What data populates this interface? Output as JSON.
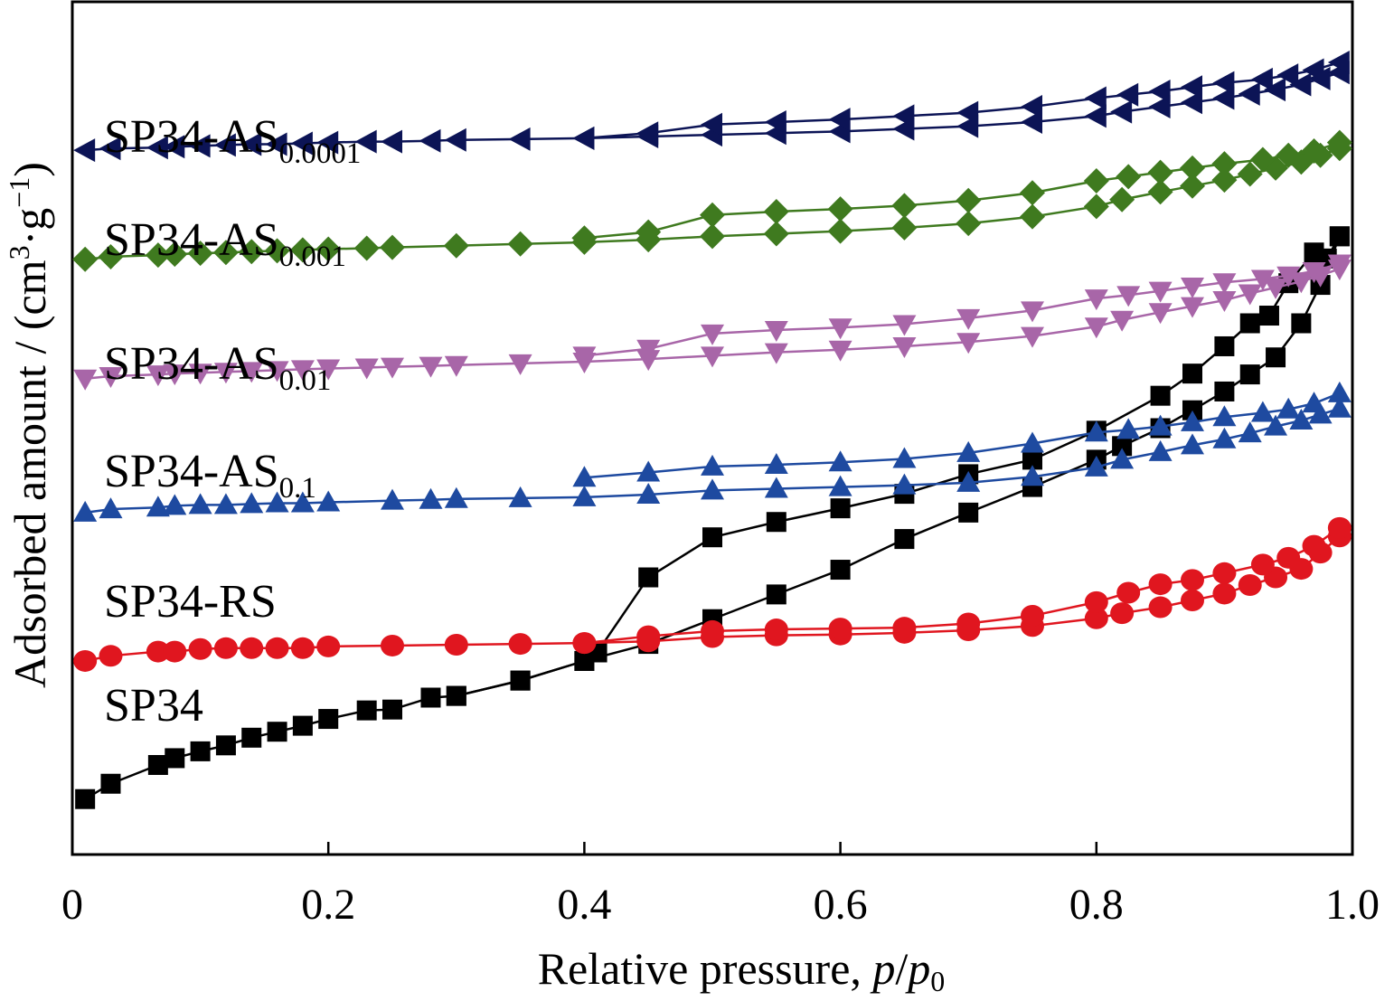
{
  "chart_data": {
    "type": "line",
    "title": "",
    "xlabel": {
      "text": "Relative pressure, ",
      "italic_p": "p",
      "slash": "/",
      "italic_p0": "p",
      "sub_0": "0"
    },
    "ylabel": {
      "text": "Adsorbed amount / (cm",
      "sup_3": "3",
      "mid": "·g",
      "sup_m1": "−1",
      "close": ")"
    },
    "xlim": [
      0,
      1.0
    ],
    "x_ticks": [
      "0",
      "0.2",
      "0.4",
      "0.6",
      "0.8",
      "1.0"
    ],
    "x_tick_values": [
      0,
      0.2,
      0.4,
      0.6,
      0.8,
      1.0
    ],
    "y_ticks_shown": false,
    "ylim": [
      0,
      100
    ],
    "grid": false,
    "legend": "inline labels at left",
    "series": [
      {
        "name": "SP34",
        "label_main": "SP34",
        "label_sub": "",
        "color": "#000000",
        "marker": "square",
        "adsorption": [
          [
            0.01,
            6.5
          ],
          [
            0.03,
            8.3
          ],
          [
            0.067,
            10.5
          ],
          [
            0.08,
            11.3
          ],
          [
            0.1,
            12.1
          ],
          [
            0.12,
            12.8
          ],
          [
            0.14,
            13.7
          ],
          [
            0.16,
            14.4
          ],
          [
            0.18,
            15.1
          ],
          [
            0.2,
            15.9
          ],
          [
            0.23,
            16.9
          ],
          [
            0.25,
            17
          ],
          [
            0.28,
            18.4
          ],
          [
            0.3,
            18.6
          ],
          [
            0.35,
            20.4
          ],
          [
            0.4,
            22.7
          ],
          [
            0.45,
            24.7
          ],
          [
            0.5,
            27.6
          ],
          [
            0.55,
            30.5
          ],
          [
            0.6,
            33.4
          ],
          [
            0.65,
            37
          ],
          [
            0.7,
            40.1
          ],
          [
            0.75,
            43.1
          ],
          [
            0.8,
            46.3
          ],
          [
            0.82,
            47.9
          ],
          [
            0.85,
            50
          ],
          [
            0.875,
            52.1
          ],
          [
            0.9,
            54.3
          ],
          [
            0.92,
            56.3
          ],
          [
            0.94,
            58.3
          ],
          [
            0.96,
            62.3
          ],
          [
            0.975,
            66.8
          ],
          [
            0.99,
            72.5
          ]
        ],
        "desorption": [
          [
            0.99,
            72.5
          ],
          [
            0.98,
            69.9
          ],
          [
            0.97,
            70.6
          ],
          [
            0.95,
            67
          ],
          [
            0.935,
            63.2
          ],
          [
            0.92,
            62.3
          ],
          [
            0.9,
            59.6
          ],
          [
            0.875,
            56.4
          ],
          [
            0.85,
            53.8
          ],
          [
            0.8,
            49.7
          ],
          [
            0.75,
            46.3
          ],
          [
            0.7,
            44.6
          ],
          [
            0.65,
            42.3
          ],
          [
            0.6,
            40.6
          ],
          [
            0.55,
            39
          ],
          [
            0.5,
            37.2
          ],
          [
            0.45,
            32.5
          ],
          [
            0.41,
            23.7
          ],
          [
            0.4,
            22.7
          ],
          [
            0.35,
            20.4
          ],
          [
            0.3,
            18.6
          ]
        ]
      },
      {
        "name": "SP34-RS",
        "label_main": "SP34-RS",
        "label_sub": "",
        "color": "#e0161f",
        "marker": "circle",
        "adsorption": [
          [
            0.01,
            22.7
          ],
          [
            0.03,
            23.3
          ],
          [
            0.067,
            23.8
          ],
          [
            0.08,
            23.8
          ],
          [
            0.1,
            24.1
          ],
          [
            0.12,
            24.2
          ],
          [
            0.14,
            24.2
          ],
          [
            0.16,
            24.2
          ],
          [
            0.18,
            24.2
          ],
          [
            0.2,
            24.4
          ],
          [
            0.25,
            24.5
          ],
          [
            0.3,
            24.6
          ],
          [
            0.35,
            24.7
          ],
          [
            0.4,
            24.8
          ],
          [
            0.45,
            25
          ],
          [
            0.5,
            25.5
          ],
          [
            0.55,
            25.7
          ],
          [
            0.6,
            25.8
          ],
          [
            0.65,
            26
          ],
          [
            0.7,
            26.3
          ],
          [
            0.75,
            26.8
          ],
          [
            0.8,
            27.7
          ],
          [
            0.82,
            28.3
          ],
          [
            0.85,
            29
          ],
          [
            0.875,
            29.8
          ],
          [
            0.9,
            30.6
          ],
          [
            0.92,
            31.6
          ],
          [
            0.94,
            32.5
          ],
          [
            0.96,
            33.5
          ],
          [
            0.975,
            35.4
          ],
          [
            0.99,
            37.3
          ]
        ],
        "desorption": [
          [
            0.99,
            38.3
          ],
          [
            0.97,
            36.2
          ],
          [
            0.95,
            34.8
          ],
          [
            0.93,
            34
          ],
          [
            0.9,
            33
          ],
          [
            0.875,
            32.2
          ],
          [
            0.85,
            31.7
          ],
          [
            0.825,
            30.7
          ],
          [
            0.8,
            29.6
          ],
          [
            0.75,
            28
          ],
          [
            0.7,
            27.1
          ],
          [
            0.65,
            26.6
          ],
          [
            0.6,
            26.5
          ],
          [
            0.55,
            26.4
          ],
          [
            0.5,
            26.2
          ],
          [
            0.45,
            25.6
          ],
          [
            0.4,
            24.8
          ]
        ]
      },
      {
        "name": "SP34-AS0.1",
        "label_main": "SP34-AS",
        "label_sub": "0.1",
        "color": "#1e4aa0",
        "marker": "triangle-up",
        "adsorption": [
          [
            0.01,
            40.1
          ],
          [
            0.03,
            40.5
          ],
          [
            0.067,
            40.7
          ],
          [
            0.08,
            40.9
          ],
          [
            0.1,
            41
          ],
          [
            0.12,
            41
          ],
          [
            0.14,
            41.1
          ],
          [
            0.16,
            41.2
          ],
          [
            0.18,
            41.2
          ],
          [
            0.2,
            41.3
          ],
          [
            0.25,
            41.5
          ],
          [
            0.28,
            41.6
          ],
          [
            0.3,
            41.7
          ],
          [
            0.35,
            41.8
          ],
          [
            0.4,
            41.9
          ],
          [
            0.45,
            42.2
          ],
          [
            0.5,
            42.7
          ],
          [
            0.55,
            42.9
          ],
          [
            0.6,
            43.1
          ],
          [
            0.65,
            43.3
          ],
          [
            0.7,
            43.6
          ],
          [
            0.75,
            44.3
          ],
          [
            0.8,
            45.4
          ],
          [
            0.82,
            46.3
          ],
          [
            0.85,
            47.2
          ],
          [
            0.875,
            48
          ],
          [
            0.9,
            48.7
          ],
          [
            0.92,
            49.4
          ],
          [
            0.94,
            50.2
          ],
          [
            0.96,
            50.9
          ],
          [
            0.975,
            51.6
          ],
          [
            0.99,
            52.3
          ]
        ],
        "desorption": [
          [
            0.99,
            54.1
          ],
          [
            0.97,
            52.9
          ],
          [
            0.95,
            52.2
          ],
          [
            0.93,
            51.8
          ],
          [
            0.9,
            51.3
          ],
          [
            0.875,
            50.7
          ],
          [
            0.85,
            50.2
          ],
          [
            0.825,
            49.8
          ],
          [
            0.8,
            49.5
          ],
          [
            0.75,
            48.2
          ],
          [
            0.7,
            47.1
          ],
          [
            0.65,
            46.4
          ],
          [
            0.6,
            46
          ],
          [
            0.55,
            45.7
          ],
          [
            0.5,
            45.5
          ],
          [
            0.45,
            44.8
          ],
          [
            0.4,
            44.2
          ]
        ]
      },
      {
        "name": "SP34-AS0.01",
        "label_main": "SP34-AS",
        "label_sub": "0.01",
        "color": "#a866a8",
        "marker": "triangle-down",
        "adsorption": [
          [
            0.01,
            55.8
          ],
          [
            0.03,
            56.1
          ],
          [
            0.067,
            56.3
          ],
          [
            0.08,
            56.4
          ],
          [
            0.1,
            56.5
          ],
          [
            0.12,
            56.6
          ],
          [
            0.14,
            56.7
          ],
          [
            0.16,
            56.8
          ],
          [
            0.18,
            56.9
          ],
          [
            0.2,
            57
          ],
          [
            0.23,
            57.1
          ],
          [
            0.25,
            57.2
          ],
          [
            0.28,
            57.3
          ],
          [
            0.3,
            57.4
          ],
          [
            0.35,
            57.6
          ],
          [
            0.4,
            57.8
          ],
          [
            0.45,
            58.1
          ],
          [
            0.5,
            58.5
          ],
          [
            0.55,
            58.9
          ],
          [
            0.6,
            59.2
          ],
          [
            0.65,
            59.6
          ],
          [
            0.7,
            60.1
          ],
          [
            0.75,
            60.8
          ],
          [
            0.8,
            61.9
          ],
          [
            0.82,
            62.7
          ],
          [
            0.85,
            63.6
          ],
          [
            0.875,
            64.3
          ],
          [
            0.9,
            65
          ],
          [
            0.92,
            65.8
          ],
          [
            0.94,
            66.5
          ],
          [
            0.96,
            67.2
          ],
          [
            0.975,
            67.9
          ],
          [
            0.99,
            68.7
          ]
        ],
        "desorption": [
          [
            0.99,
            69.3
          ],
          [
            0.97,
            68.4
          ],
          [
            0.95,
            67.9
          ],
          [
            0.93,
            67.5
          ],
          [
            0.9,
            67.1
          ],
          [
            0.875,
            66.6
          ],
          [
            0.85,
            66.1
          ],
          [
            0.825,
            65.6
          ],
          [
            0.8,
            65.2
          ],
          [
            0.75,
            63.8
          ],
          [
            0.7,
            62.9
          ],
          [
            0.65,
            62.2
          ],
          [
            0.6,
            61.8
          ],
          [
            0.55,
            61.5
          ],
          [
            0.5,
            61.1
          ],
          [
            0.45,
            59.3
          ],
          [
            0.4,
            58.5
          ]
        ]
      },
      {
        "name": "SP34-AS0.001",
        "label_main": "SP34-AS",
        "label_sub": "0.001",
        "color": "#3f7a1f",
        "marker": "diamond",
        "adsorption": [
          [
            0.01,
            69.8
          ],
          [
            0.03,
            70.1
          ],
          [
            0.067,
            70.3
          ],
          [
            0.08,
            70.4
          ],
          [
            0.1,
            70.5
          ],
          [
            0.12,
            70.6
          ],
          [
            0.14,
            70.7
          ],
          [
            0.16,
            70.8
          ],
          [
            0.18,
            70.9
          ],
          [
            0.2,
            71
          ],
          [
            0.23,
            71.1
          ],
          [
            0.25,
            71.2
          ],
          [
            0.3,
            71.4
          ],
          [
            0.35,
            71.6
          ],
          [
            0.4,
            71.8
          ],
          [
            0.45,
            72.1
          ],
          [
            0.5,
            72.5
          ],
          [
            0.55,
            72.8
          ],
          [
            0.6,
            73.1
          ],
          [
            0.65,
            73.5
          ],
          [
            0.7,
            74
          ],
          [
            0.75,
            74.8
          ],
          [
            0.8,
            76
          ],
          [
            0.82,
            76.8
          ],
          [
            0.85,
            77.7
          ],
          [
            0.875,
            78.4
          ],
          [
            0.9,
            79.1
          ],
          [
            0.92,
            79.8
          ],
          [
            0.94,
            80.5
          ],
          [
            0.96,
            81.2
          ],
          [
            0.975,
            82
          ],
          [
            0.99,
            82.8
          ]
        ],
        "desorption": [
          [
            0.99,
            83.5
          ],
          [
            0.97,
            82.5
          ],
          [
            0.95,
            82
          ],
          [
            0.93,
            81.5
          ],
          [
            0.9,
            81
          ],
          [
            0.875,
            80.5
          ],
          [
            0.85,
            80
          ],
          [
            0.825,
            79.5
          ],
          [
            0.8,
            79
          ],
          [
            0.75,
            77.6
          ],
          [
            0.7,
            76.7
          ],
          [
            0.65,
            76.1
          ],
          [
            0.6,
            75.7
          ],
          [
            0.55,
            75.4
          ],
          [
            0.5,
            75
          ],
          [
            0.45,
            73
          ],
          [
            0.4,
            72.3
          ]
        ]
      },
      {
        "name": "SP34-AS0.0001",
        "label_main": "SP34-AS",
        "label_sub": "0.0001",
        "color": "#0c1456",
        "marker": "triangle-left",
        "adsorption": [
          [
            0.01,
            82.6
          ],
          [
            0.03,
            82.8
          ],
          [
            0.067,
            82.9
          ],
          [
            0.08,
            83
          ],
          [
            0.1,
            83.1
          ],
          [
            0.12,
            83.2
          ],
          [
            0.14,
            83.3
          ],
          [
            0.16,
            83.3
          ],
          [
            0.18,
            83.4
          ],
          [
            0.2,
            83.5
          ],
          [
            0.23,
            83.6
          ],
          [
            0.25,
            83.6
          ],
          [
            0.28,
            83.7
          ],
          [
            0.3,
            83.8
          ],
          [
            0.35,
            83.9
          ],
          [
            0.4,
            84
          ],
          [
            0.45,
            84.2
          ],
          [
            0.5,
            84.4
          ],
          [
            0.55,
            84.6
          ],
          [
            0.6,
            84.8
          ],
          [
            0.65,
            85.1
          ],
          [
            0.7,
            85.4
          ],
          [
            0.75,
            85.9
          ],
          [
            0.8,
            86.6
          ],
          [
            0.82,
            87.1
          ],
          [
            0.85,
            87.7
          ],
          [
            0.875,
            88.2
          ],
          [
            0.9,
            88.7
          ],
          [
            0.92,
            89.2
          ],
          [
            0.94,
            89.7
          ],
          [
            0.96,
            90.3
          ],
          [
            0.975,
            91
          ],
          [
            0.99,
            91.7
          ]
        ],
        "desorption": [
          [
            0.99,
            92.9
          ],
          [
            0.97,
            92
          ],
          [
            0.95,
            91.4
          ],
          [
            0.93,
            90.9
          ],
          [
            0.9,
            90.5
          ],
          [
            0.875,
            90
          ],
          [
            0.85,
            89.5
          ],
          [
            0.825,
            89.1
          ],
          [
            0.8,
            88.7
          ],
          [
            0.75,
            87.7
          ],
          [
            0.7,
            87
          ],
          [
            0.65,
            86.6
          ],
          [
            0.6,
            86.2
          ],
          [
            0.55,
            85.9
          ],
          [
            0.5,
            85.6
          ],
          [
            0.45,
            84.6
          ],
          [
            0.4,
            84
          ]
        ]
      }
    ]
  }
}
